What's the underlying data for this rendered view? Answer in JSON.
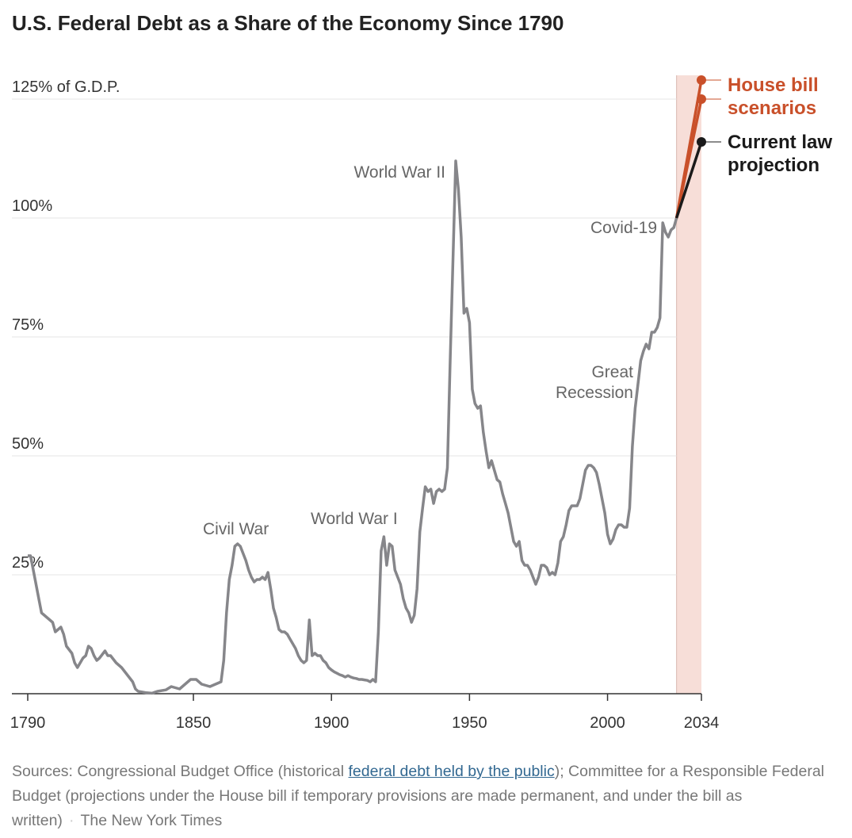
{
  "chart_data": {
    "type": "line",
    "title": "U.S. Federal Debt as a Share of the Economy Since 1790",
    "xlim": [
      1790,
      2034
    ],
    "ylim": [
      0,
      130
    ],
    "xticks": [
      1790,
      1850,
      1900,
      1950,
      2000,
      2034
    ],
    "yticks": [
      {
        "value": 25,
        "label": "25%"
      },
      {
        "value": 50,
        "label": "50%"
      },
      {
        "value": 75,
        "label": "75%"
      },
      {
        "value": 100,
        "label": "100%"
      },
      {
        "value": 125,
        "label": "125% of G.D.P."
      }
    ],
    "grid": true,
    "shaded_range": [
      2025,
      2034
    ],
    "shade_color": "#f7ded8",
    "series": [
      {
        "color": "#86868a",
        "x": [
          1790,
          1791,
          1792,
          1794,
          1795,
          1797,
          1799,
          1800,
          1802,
          1803,
          1804,
          1806,
          1807,
          1808,
          1810,
          1811,
          1812,
          1813,
          1814,
          1815,
          1816,
          1818,
          1819,
          1820,
          1822,
          1824,
          1826,
          1828,
          1829,
          1830,
          1833,
          1835,
          1836,
          1837,
          1840,
          1842,
          1845,
          1848,
          1849,
          1851,
          1853,
          1856,
          1858,
          1860,
          1861,
          1862,
          1863,
          1864,
          1865,
          1866,
          1867,
          1868,
          1869,
          1870,
          1871,
          1872,
          1873,
          1874,
          1875,
          1876,
          1877,
          1878,
          1879,
          1880,
          1881,
          1882,
          1883,
          1884,
          1885,
          1886,
          1887,
          1888,
          1889,
          1890,
          1891,
          1892,
          1893,
          1894,
          1895,
          1896,
          1897,
          1898,
          1899,
          1900,
          1901,
          1902,
          1903,
          1904,
          1905,
          1906,
          1907,
          1908,
          1909,
          1910,
          1911,
          1912,
          1913,
          1914,
          1915,
          1916,
          1917,
          1918,
          1919,
          1920,
          1921,
          1922,
          1923,
          1924,
          1925,
          1926,
          1927,
          1928,
          1929,
          1930,
          1931,
          1932,
          1933,
          1934,
          1935,
          1936,
          1937,
          1938,
          1939,
          1940,
          1941,
          1942,
          1943,
          1944,
          1945,
          1946,
          1947,
          1948,
          1949,
          1950,
          1951,
          1952,
          1953,
          1954,
          1955,
          1956,
          1957,
          1958,
          1959,
          1960,
          1961,
          1962,
          1963,
          1964,
          1965,
          1966,
          1967,
          1968,
          1969,
          1970,
          1971,
          1972,
          1973,
          1974,
          1975,
          1976,
          1977,
          1978,
          1979,
          1980,
          1981,
          1982,
          1983,
          1984,
          1985,
          1986,
          1987,
          1988,
          1989,
          1990,
          1991,
          1992,
          1993,
          1994,
          1995,
          1996,
          1997,
          1998,
          1999,
          2000,
          2001,
          2002,
          2003,
          2004,
          2005,
          2006,
          2007,
          2008,
          2009,
          2010,
          2011,
          2012,
          2013,
          2014,
          2015,
          2016,
          2017,
          2018,
          2019,
          2020,
          2021,
          2022,
          2023,
          2024,
          2025
        ],
        "values": [
          29,
          29,
          26,
          20,
          17,
          16,
          15,
          13,
          14,
          12.5,
          10,
          8.5,
          6.5,
          5.5,
          7.5,
          8,
          10,
          9.5,
          8,
          7,
          7.5,
          9,
          8,
          8,
          6.5,
          5.5,
          4,
          2.5,
          1,
          0.5,
          0.2,
          0.1,
          0.3,
          0.5,
          0.8,
          1.5,
          1,
          2.5,
          3,
          3,
          2,
          1.5,
          2,
          2.5,
          7,
          17,
          24,
          27,
          31,
          31.5,
          31,
          29.5,
          28,
          26,
          24.5,
          23.5,
          24,
          24,
          24.5,
          24,
          25.5,
          22,
          18,
          16,
          13.5,
          13,
          13,
          12.5,
          11.5,
          10.5,
          9.5,
          8,
          7,
          6.5,
          7,
          15.5,
          8,
          8.5,
          8,
          8,
          7,
          6.5,
          5.5,
          5,
          4.6,
          4.3,
          4,
          3.8,
          3.5,
          3.8,
          3.5,
          3.3,
          3.2,
          3,
          3,
          2.9,
          2.8,
          2.5,
          3,
          2.5,
          13,
          30,
          33,
          27,
          31.5,
          31,
          26,
          24.5,
          23,
          20,
          18,
          17,
          15,
          16.5,
          22,
          34,
          39,
          43.5,
          42.5,
          43,
          40,
          42.5,
          43,
          42.5,
          43,
          47.5,
          70,
          91,
          112,
          106,
          96,
          80,
          81,
          78,
          64,
          61,
          60,
          60.5,
          55,
          51,
          47.5,
          49,
          47,
          45,
          44.5,
          42,
          40,
          38,
          35,
          32,
          31,
          32,
          28,
          27,
          27,
          26,
          24.5,
          23,
          24.5,
          27,
          27,
          26.5,
          25,
          25.5,
          25,
          27.5,
          32,
          33,
          35.5,
          38.5,
          39.5,
          39.5,
          39.5,
          41,
          44,
          47,
          48,
          48,
          47.5,
          46.5,
          44,
          41,
          38,
          33.5,
          31.5,
          32.5,
          34.5,
          35.5,
          35.5,
          35,
          35,
          39,
          52,
          60,
          65,
          70,
          72,
          73.5,
          72.5,
          76,
          76,
          77,
          79,
          99,
          97,
          96,
          97.5,
          98,
          100
        ]
      },
      {
        "name": "House bill scenarios",
        "color": "#c9502a",
        "x": [
          2025,
          2034
        ],
        "scenarios": [
          {
            "values": [
              100,
              129
            ]
          },
          {
            "values": [
              100,
              125
            ]
          }
        ]
      },
      {
        "name": "Current law projection",
        "color": "#1a1a1a",
        "x": [
          2025,
          2034
        ],
        "values": [
          100,
          116
        ]
      }
    ],
    "annotations": [
      "World War II",
      "Civil War",
      "World War I",
      "Covid-19",
      "Great Recession"
    ],
    "source": {
      "before": "Sources: Congressional Budget Office (historical ",
      "link": "federal debt held by the public",
      "after": "); Committee for a Responsible Federal Budget (projections under the House bill if temporary provisions are made permanent, and under the bill as written)",
      "separator": "·",
      "credit": "The New York Times"
    }
  }
}
